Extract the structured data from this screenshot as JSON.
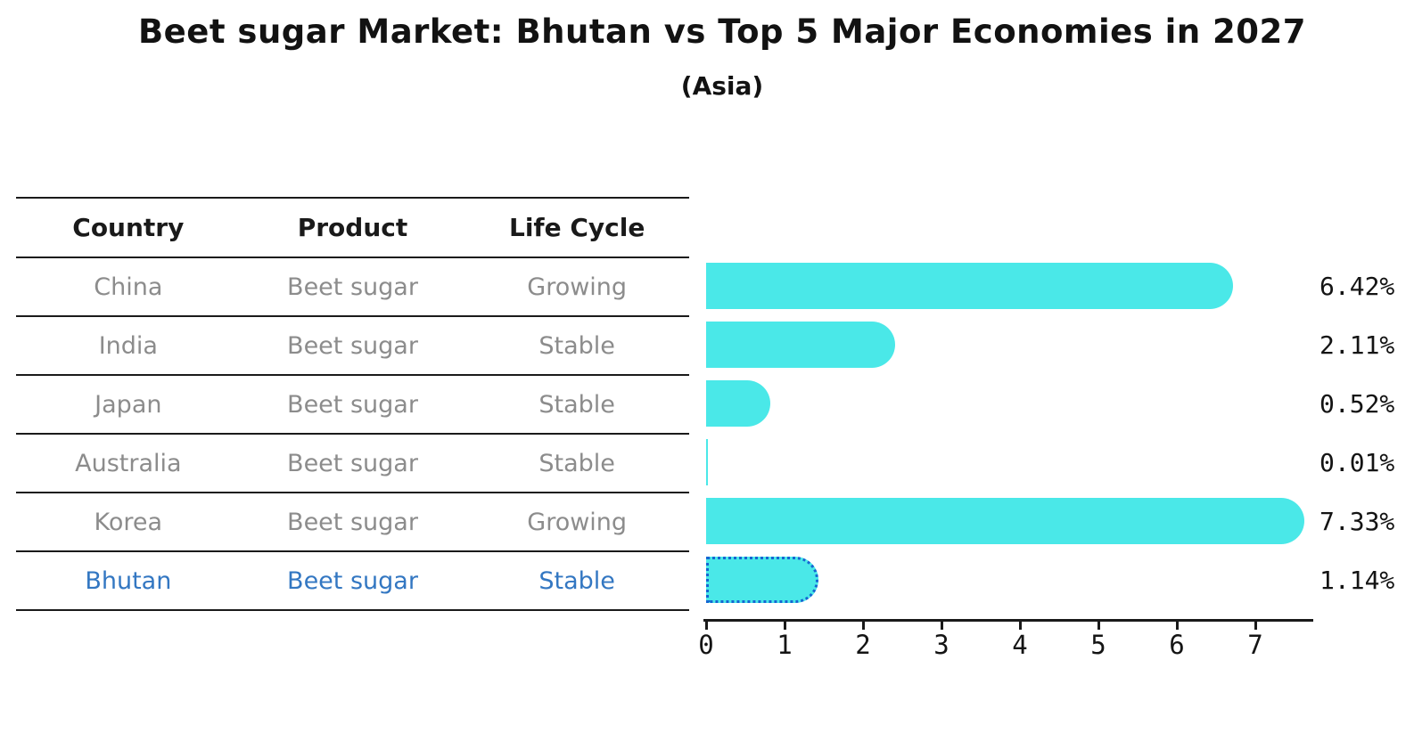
{
  "header": {
    "title": "Beet sugar Market: Bhutan vs Top 5 Major Economies in 2027",
    "subtitle": "(Asia)"
  },
  "table": {
    "columns": [
      "Country",
      "Product",
      "Life Cycle"
    ],
    "rows": [
      {
        "country": "China",
        "product": "Beet sugar",
        "life_cycle": "Growing",
        "highlight": false
      },
      {
        "country": "India",
        "product": "Beet sugar",
        "life_cycle": "Stable",
        "highlight": false
      },
      {
        "country": "Japan",
        "product": "Beet sugar",
        "life_cycle": "Stable",
        "highlight": false
      },
      {
        "country": "Australia",
        "product": "Beet sugar",
        "life_cycle": "Stable",
        "highlight": false
      },
      {
        "country": "Korea",
        "product": "Beet sugar",
        "life_cycle": "Growing",
        "highlight": false
      },
      {
        "country": "Bhutan",
        "product": "Beet sugar",
        "life_cycle": "Stable",
        "highlight": true
      }
    ]
  },
  "chart_data": {
    "type": "bar",
    "orientation": "horizontal",
    "title": "Beet sugar Market: Bhutan vs Top 5 Major Economies in 2027",
    "subtitle": "(Asia)",
    "categories": [
      "China",
      "India",
      "Japan",
      "Australia",
      "Korea",
      "Bhutan"
    ],
    "values": [
      6.42,
      2.11,
      0.52,
      0.01,
      7.33,
      1.14
    ],
    "value_labels": [
      "6.42%",
      "2.11%",
      "0.52%",
      "0.01%",
      "7.33%",
      "1.14%"
    ],
    "x_ticks": [
      "0",
      "1",
      "2",
      "3",
      "4",
      "5",
      "6",
      "7"
    ],
    "xlim": [
      0,
      7.7
    ],
    "grid": false,
    "legend": "none",
    "highlight_index": 5,
    "colors": {
      "bar": "#4ae8e8",
      "highlight_bar": "#1c82f0",
      "highlight_border": "#1566d2",
      "highlight_text": "#3377c2",
      "axis": "#1a1a1a",
      "table_text": "#8c8c8c",
      "label_text": "#141414"
    }
  }
}
